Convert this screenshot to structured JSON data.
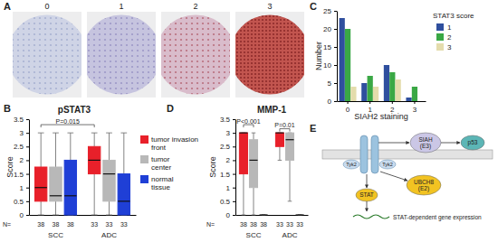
{
  "panel_labels": [
    "A",
    "B",
    "C",
    "D",
    "E"
  ],
  "panel_a": {
    "image_labels": [
      "0",
      "1",
      "2",
      "3"
    ]
  },
  "chart_data": [
    {
      "type": "box",
      "title": "pSTAT3",
      "y_label": "Score",
      "n_label": "N=",
      "categories": [
        "SCC",
        "ADC"
      ],
      "series": [
        {
          "name": "tumor invasion front",
          "color": "#e8202a",
          "n": [
            38,
            33
          ],
          "values": [
            {
              "min": 0,
              "q1": 0.5,
              "median": 1,
              "q3": 1.75,
              "max": 3
            },
            {
              "min": 0,
              "q1": 1.5,
              "median": 2,
              "q3": 2.5,
              "max": 3
            }
          ]
        },
        {
          "name": "tumor center",
          "color": "#b8b8b8",
          "n": [
            38,
            33
          ],
          "values": [
            {
              "min": 0,
              "q1": 0.5,
              "median": 0.7,
              "q3": 1.75,
              "max": 3
            },
            {
              "min": 0,
              "q1": 0.5,
              "median": 1.5,
              "q3": 2,
              "max": 3
            }
          ]
        },
        {
          "name": "normal tissue",
          "color": "#1f3fd6",
          "n": [
            38,
            33
          ],
          "values": [
            {
              "min": 0,
              "q1": 0,
              "median": 0.7,
              "q3": 2,
              "max": 3
            },
            {
              "min": 0,
              "q1": 0,
              "median": 0.5,
              "q3": 1.5,
              "max": 3
            }
          ]
        }
      ],
      "ylim": [
        0,
        3.5
      ],
      "yticks": [
        0,
        0.5,
        1,
        1.5,
        2,
        2.5,
        3,
        3.5
      ],
      "legend": "right",
      "annotations": [
        {
          "text": "P=0.015",
          "y": 3.3
        }
      ]
    },
    {
      "type": "box",
      "title": "MMP-1",
      "y_label": "Score",
      "n_label": "N=",
      "categories": [
        "SCC",
        "ADC"
      ],
      "series": [
        {
          "color": "#e8202a",
          "n": [
            38,
            33
          ],
          "values": [
            {
              "min": 0,
              "q1": 1.5,
              "median": 3,
              "q3": 3,
              "max": 3
            },
            {
              "min": 2,
              "q1": 2.5,
              "median": 3,
              "q3": 3,
              "max": 3
            }
          ]
        },
        {
          "color": "#b8b8b8",
          "n": [
            38,
            33
          ],
          "values": [
            {
              "min": 0,
              "q1": 1,
              "median": 2,
              "q3": 2.75,
              "max": 3
            },
            {
              "min": 0.5,
              "q1": 2,
              "median": 2.75,
              "q3": 3,
              "max": 3
            }
          ]
        },
        {
          "color": "#1f3fd6",
          "n": [
            38,
            33
          ],
          "values": [
            {
              "min": 0,
              "q1": 0,
              "median": 0,
              "q3": 0,
              "max": 0
            },
            {
              "min": 0,
              "q1": 0,
              "median": 0,
              "q3": 0,
              "max": 0
            }
          ]
        }
      ],
      "ylim": [
        0,
        3.5
      ],
      "yticks": [
        0,
        0.5,
        1,
        1.5,
        2,
        2.5,
        3,
        3.5
      ],
      "annotations": [
        {
          "text": "P<0.001",
          "y": 3.3
        },
        {
          "text": "P=0.01",
          "y": 3.15
        }
      ]
    },
    {
      "type": "bar",
      "x_label": "SIAH2 staining",
      "y_label": "Number",
      "legend_title": "STAT3 score",
      "categories": [
        "0",
        "1",
        "2",
        "3"
      ],
      "series": [
        {
          "name": "1",
          "color": "#2f4f9e",
          "values": [
            23,
            5,
            10,
            1
          ]
        },
        {
          "name": "2",
          "color": "#3aa845",
          "values": [
            20,
            7,
            8,
            4
          ]
        },
        {
          "name": "3",
          "color": "#e4dcac",
          "values": [
            4,
            4,
            6,
            0
          ]
        }
      ],
      "ylim": [
        0,
        25
      ],
      "yticks": [
        0,
        5,
        10,
        15,
        20,
        25
      ],
      "legend": "top-right"
    }
  ],
  "panel_e": {
    "kinase_labels": [
      "Tyk2",
      "Tyk2"
    ],
    "e3": "SIAH (E3)",
    "target": "p53",
    "e2": "UBCH8 (E2)",
    "tf": "STAT",
    "output": "STAT-dependent gene expression"
  }
}
